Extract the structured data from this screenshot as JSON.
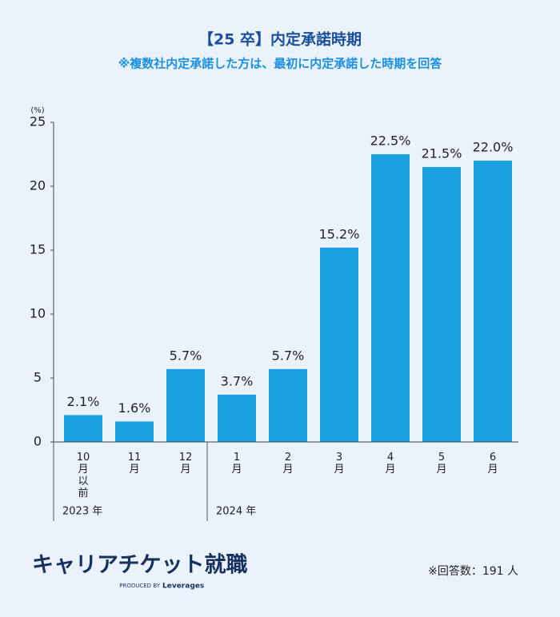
{
  "chart_data": {
    "type": "bar",
    "title": "【25 卒】内定承諾時期",
    "subtitle": "※複数社内定承諾した方は、最初に内定承諾した時期を回答",
    "y_unit": "(%)",
    "color": "#1a9fe3",
    "ylim": [
      0,
      25
    ],
    "yticks": [
      0,
      5,
      10,
      15,
      20,
      25
    ],
    "groups": [
      {
        "label": "2023 年",
        "categories": [
          "10月以前",
          "11月",
          "12月"
        ],
        "values": [
          2.1,
          1.6,
          5.7
        ],
        "value_labels": [
          "2.1%",
          "1.6%",
          "5.7%"
        ]
      },
      {
        "label": "2024 年",
        "categories": [
          "1月",
          "2月",
          "3月",
          "4月",
          "5月",
          "6月"
        ],
        "values": [
          3.7,
          5.7,
          15.2,
          22.5,
          21.5,
          22.0
        ],
        "value_labels": [
          "3.7%",
          "5.7%",
          "15.2%",
          "22.5%",
          "21.5%",
          "22.0%"
        ]
      }
    ]
  },
  "footer": {
    "logo": "キャリアチケット就職",
    "produced_by": "PRODUCED BY",
    "brand": "Leverages",
    "note": "※回答数：191 人"
  }
}
